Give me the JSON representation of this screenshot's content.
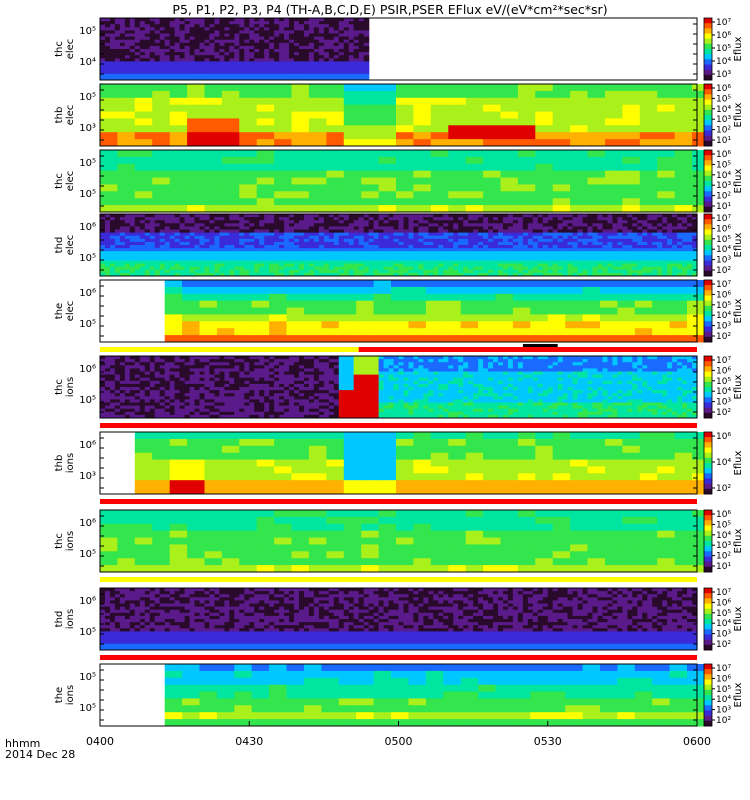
{
  "title": "P5, P1, P2, P3, P4 (TH-A,B,C,D,E) PSIR,PSER EFlux eV/(eV*cm²*sec*sr)",
  "footer": {
    "label1": "hhmm",
    "label2": "2014 Dec 28"
  },
  "colors": {
    "colormap": [
      "#2a0a2a",
      "#5a1a8a",
      "#3a2ad8",
      "#1a6aff",
      "#00c8ff",
      "#00e6a0",
      "#33e64d",
      "#aaf01a",
      "#ffff00",
      "#ffb000",
      "#ff5a00",
      "#e00000"
    ],
    "flag_yellow": "#ffff00",
    "flag_red": "#ff0000",
    "flag_black": "#000000"
  },
  "chart_data": {
    "type": "heatmap",
    "x_ticks": [
      "0400",
      "0430",
      "0500",
      "0530",
      "0600"
    ],
    "x_range": [
      "04:00",
      "06:00"
    ],
    "panels": [
      {
        "ylabel": [
          "thc",
          "elec"
        ],
        "y_ticks": [
          "10⁵",
          "10⁴"
        ],
        "cbar_ticks": [
          "10⁷",
          "10⁶",
          "10⁵",
          "10⁴",
          "10³"
        ],
        "cbar_label": "Eflux",
        "pattern": "dark_noise",
        "data_start": "04:00",
        "data_end": "04:54",
        "bottom_band": "blue"
      },
      {
        "ylabel": [
          "thb",
          "elec"
        ],
        "y_ticks": [
          "10⁵",
          "10³"
        ],
        "cbar_ticks": [
          "10⁶",
          "10⁵",
          "10⁴",
          "10³",
          "10²",
          "10¹"
        ],
        "cbar_label": "Eflux",
        "pattern": "green_yellow",
        "data_start": "04:00",
        "data_end": "06:00",
        "cyan_window": [
          "04:48",
          "04:58"
        ],
        "hot_window": [
          "04:15",
          "04:25"
        ],
        "hot_window2": [
          "05:10",
          "05:25"
        ]
      },
      {
        "ylabel": [
          "thc",
          "elec"
        ],
        "y_ticks": [
          "10⁵",
          "10⁵"
        ],
        "cbar_ticks": [
          "10⁶",
          "10⁵",
          "10⁴",
          "10³",
          "10²",
          "10¹"
        ],
        "cbar_label": "Eflux",
        "pattern": "green_flat",
        "data_start": "04:00",
        "data_end": "06:00"
      },
      {
        "ylabel": [
          "thd",
          "elec"
        ],
        "y_ticks": [
          "10⁶",
          "10⁵"
        ],
        "cbar_ticks": [
          "10⁷",
          "10⁶",
          "10⁵",
          "10⁴",
          "10³",
          "10²"
        ],
        "cbar_label": "Eflux",
        "pattern": "dark_blue_green",
        "data_start": "04:00",
        "data_end": "06:00"
      },
      {
        "ylabel": [
          "the",
          "elec"
        ],
        "y_ticks": [
          "10⁶",
          "10⁵"
        ],
        "cbar_ticks": [
          "10⁷",
          "10⁶",
          "10⁵",
          "10⁴",
          "10³",
          "10²"
        ],
        "cbar_label": "Eflux",
        "pattern": "blue_green",
        "data_start": "04:13",
        "data_end": "06:00"
      },
      {
        "ylabel": [
          "thc",
          "ions"
        ],
        "y_ticks": [
          "10⁶",
          "10⁵"
        ],
        "cbar_ticks": [
          "10⁷",
          "10⁶",
          "10⁵",
          "10⁴",
          "10³",
          "10²"
        ],
        "cbar_label": "Eflux",
        "pattern": "dark_then_blue",
        "data_start": "04:00",
        "data_end": "06:00",
        "switch_time": "04:48",
        "red_window": [
          "04:48",
          "04:56"
        ]
      },
      {
        "ylabel": [
          "thb",
          "ions"
        ],
        "y_ticks": [
          "10⁶",
          "10³"
        ],
        "cbar_ticks": [
          "10⁶",
          "10⁴",
          "10²"
        ],
        "cbar_label": "Eflux",
        "pattern": "green_yellow_ions",
        "data_start": "04:07",
        "data_end": "06:00",
        "cyan_window": [
          "04:48",
          "04:58"
        ],
        "hot_window": [
          "04:13",
          "04:20"
        ]
      },
      {
        "ylabel": [
          "thc",
          "ions"
        ],
        "y_ticks": [
          "10⁶",
          "10⁵"
        ],
        "cbar_ticks": [
          "10⁶",
          "10⁵",
          "10⁴",
          "10³",
          "10²",
          "10¹"
        ],
        "cbar_label": "Eflux",
        "pattern": "green_flat",
        "data_start": "04:00",
        "data_end": "06:00"
      },
      {
        "ylabel": [
          "thd",
          "ions"
        ],
        "y_ticks": [
          "10⁶",
          "10⁵"
        ],
        "cbar_ticks": [
          "10⁷",
          "10⁶",
          "10⁵",
          "10⁴",
          "10³",
          "10²"
        ],
        "cbar_label": "Eflux",
        "pattern": "dark_noise_full",
        "data_start": "04:00",
        "data_end": "06:00"
      },
      {
        "ylabel": [
          "the",
          "ions"
        ],
        "y_ticks": [
          "10⁵",
          "10⁵"
        ],
        "cbar_ticks": [
          "10⁷",
          "10⁶",
          "10⁵",
          "10⁴",
          "10³",
          "10²"
        ],
        "cbar_label": "Eflux",
        "pattern": "blue_ions",
        "data_start": "04:13",
        "data_end": "06:00"
      }
    ],
    "flag_bars": [
      {
        "after_panel": 4,
        "segments": [
          {
            "from": "04:00",
            "to": "04:52",
            "color": "yellow"
          },
          {
            "from": "04:52",
            "to": "06:00",
            "color": "red"
          },
          {
            "from": "05:25",
            "to": "05:32",
            "color": "black"
          }
        ]
      },
      {
        "after_panel": 5,
        "segments": [
          {
            "from": "04:00",
            "to": "06:00",
            "color": "red"
          }
        ]
      },
      {
        "after_panel": 6,
        "segments": [
          {
            "from": "04:00",
            "to": "06:00",
            "color": "red"
          }
        ]
      },
      {
        "after_panel": 7,
        "segments": [
          {
            "from": "04:00",
            "to": "06:00",
            "color": "yellow"
          }
        ]
      },
      {
        "after_panel": 8,
        "segments": [
          {
            "from": "04:00",
            "to": "06:00",
            "color": "red"
          }
        ]
      }
    ]
  }
}
